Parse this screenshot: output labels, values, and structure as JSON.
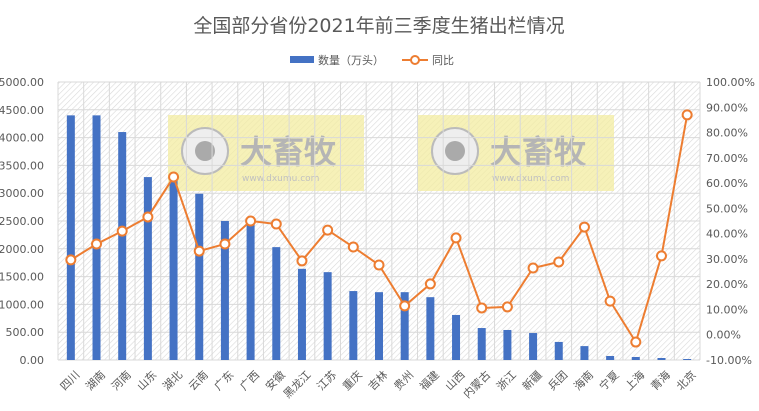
{
  "chart_data": {
    "type": "bar+line",
    "title": "全国部分省份2021年前三季度生猪出栏情况",
    "categories": [
      "四川",
      "湖南",
      "河南",
      "山东",
      "湖北",
      "云南",
      "广东",
      "广西",
      "安徽",
      "黑龙江",
      "江苏",
      "重庆",
      "吉林",
      "贵州",
      "福建",
      "山西",
      "内蒙古",
      "浙江",
      "新疆",
      "兵团",
      "海南",
      "宁夏",
      "上海",
      "青海",
      "北京"
    ],
    "series": [
      {
        "name": "数量（万头）",
        "type": "bar",
        "axis": "left",
        "color": "#4472C4",
        "values": [
          4400,
          4400,
          4100,
          3290,
          3240,
          2990,
          2500,
          2480,
          2030,
          1640,
          1580,
          1240,
          1220,
          1220,
          1130,
          810,
          575,
          540,
          485,
          325,
          250,
          72,
          54,
          36,
          18
        ]
      },
      {
        "name": "同比",
        "type": "line",
        "axis": "right",
        "color": "#ED7D31",
        "values": [
          29.6,
          35.9,
          41.0,
          46.6,
          62.4,
          33.1,
          35.9,
          45.0,
          43.8,
          29.2,
          41.4,
          34.7,
          27.6,
          11.4,
          20.1,
          38.3,
          10.6,
          11.0,
          26.4,
          28.8,
          42.6,
          13.3,
          -2.9,
          31.2,
          87.0
        ]
      }
    ],
    "left_axis": {
      "ylim": [
        0,
        5000
      ],
      "ticks": [
        "0.00",
        "500.00",
        "1000.00",
        "1500.00",
        "2000.00",
        "2500.00",
        "3000.00",
        "3500.00",
        "4000.00",
        "4500.00",
        "5000.00"
      ]
    },
    "right_axis": {
      "ylim": [
        -10,
        100
      ],
      "ticks": [
        "-10.00%",
        "0.00%",
        "10.00%",
        "20.00%",
        "30.00%",
        "40.00%",
        "50.00%",
        "60.00%",
        "70.00%",
        "80.00%",
        "90.00%",
        "100.00%"
      ]
    },
    "legend": "top",
    "grid": true
  },
  "watermark": {
    "brand": "大畜牧",
    "url": "www.dxumu.com"
  }
}
